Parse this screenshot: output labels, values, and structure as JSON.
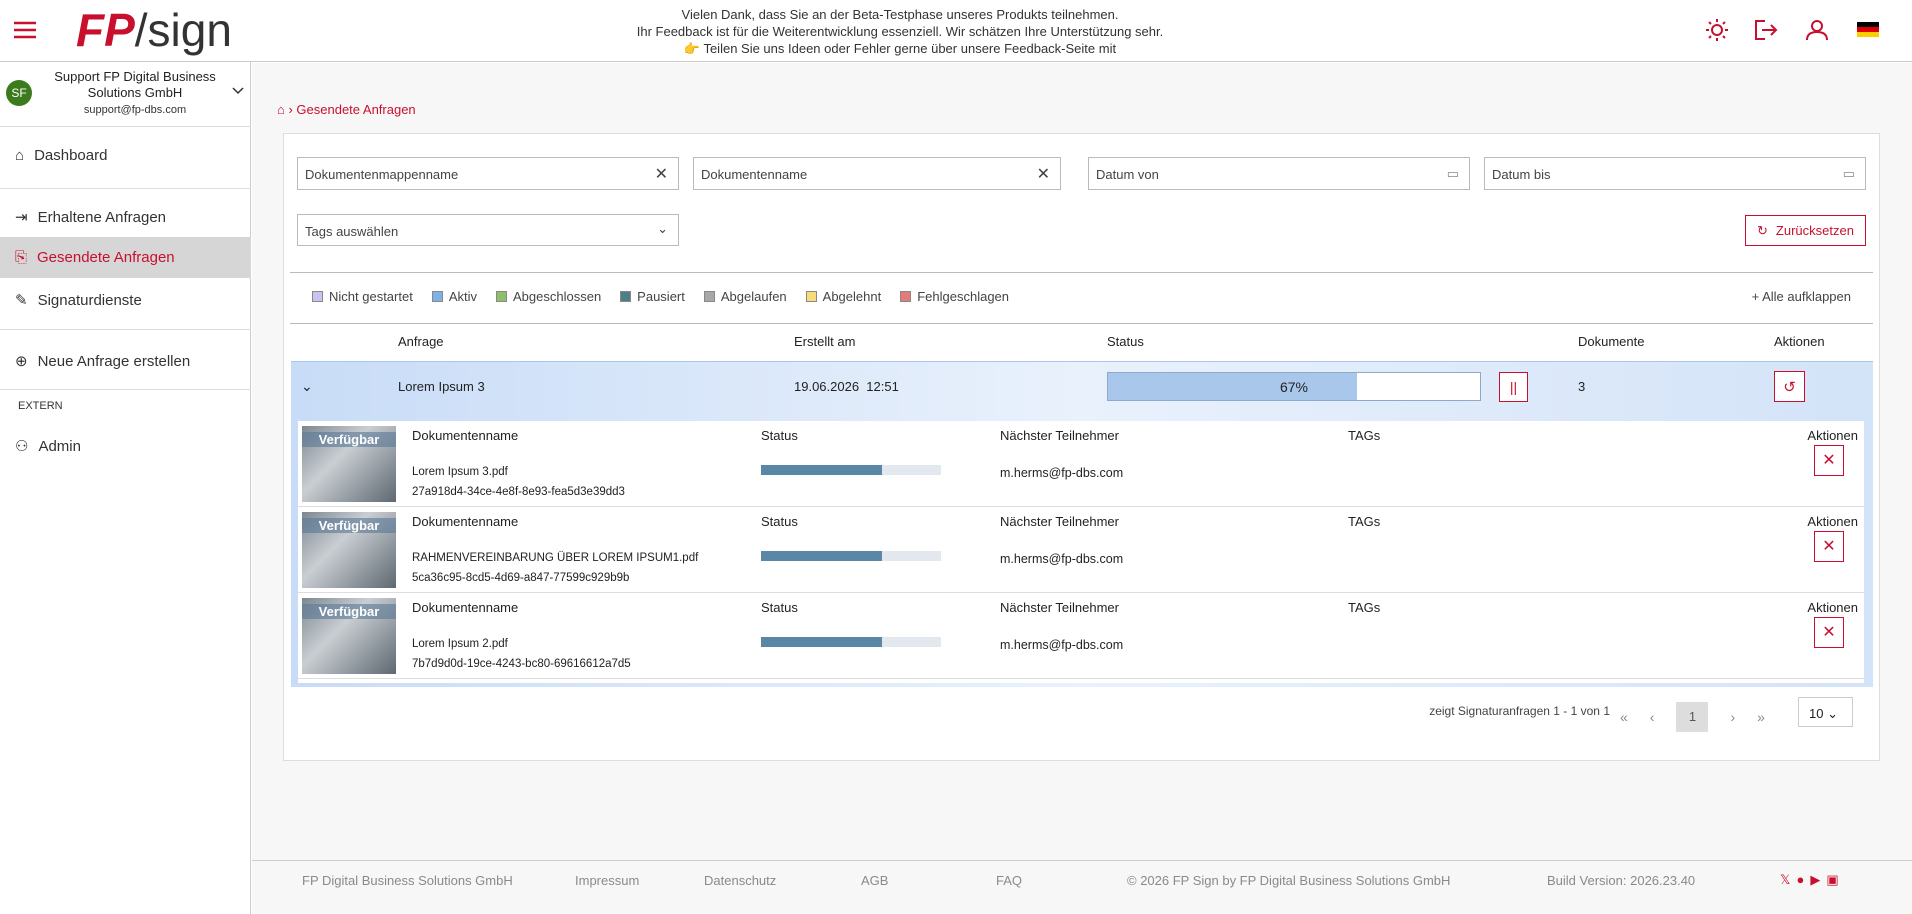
{
  "header": {
    "logo_mark": "FP",
    "logo_text": "/sign",
    "banner": [
      "Vielen Dank, dass Sie an der Beta-Testphase unseres Produkts teilnehmen.",
      "Ihr Feedback ist für die Weiterentwicklung essenziell. Wir schätzen Ihre Unterstützung sehr.",
      "👉 Teilen Sie uns Ideen oder Fehler gerne über unsere Feedback-Seite mit"
    ]
  },
  "sidebar": {
    "initials": "SF",
    "account_name": "Support FP Digital Business Solutions GmbH",
    "email": "support@fp-dbs.com",
    "nav": [
      "Dashboard",
      "Erhaltene Anfragen",
      "Gesendete Anfragen",
      "Signaturdienste",
      "Neue Anfrage erstellen"
    ],
    "section": "EXTERN",
    "admin": "Admin"
  },
  "breadcrumb": "Gesendete Anfragen",
  "filters": {
    "placeholders": [
      "Dokumentenmappenname",
      "Dokumentenname",
      "Datum von",
      "Datum bis"
    ],
    "tags": "Tags auswählen",
    "reset": "Zurücksetzen"
  },
  "legend": {
    "items": [
      {
        "label": "Nicht gestartet",
        "color": "#c9c3ef"
      },
      {
        "label": "Aktiv",
        "color": "#7fb1e6"
      },
      {
        "label": "Abgeschlossen",
        "color": "#8fbf6a"
      },
      {
        "label": "Pausiert",
        "color": "#4f7f86"
      },
      {
        "label": "Abgelaufen",
        "color": "#a8a8a8"
      },
      {
        "label": "Abgelehnt",
        "color": "#f7dc7c"
      },
      {
        "label": "Fehlgeschlagen",
        "color": "#e67a7a"
      }
    ],
    "expand_all": "Alle aufklappen"
  },
  "table": {
    "headers": [
      "Anfrage",
      "Erstellt am",
      "Status",
      "Dokumente",
      "Aktionen"
    ],
    "row": {
      "name": "Lorem Ipsum 3",
      "created": "19.06.2026  12:51",
      "progress": {
        "value": 67,
        "label": "67%"
      },
      "documents": "3"
    }
  },
  "documents": {
    "badge": "Verfügbar",
    "headers": [
      "Dokumentenname",
      "Status",
      "Nächster Teilnehmer",
      "TAGs",
      "Aktionen"
    ],
    "rows": [
      {
        "file": "Lorem Ipsum 3.pdf",
        "id": "27a918d4-34ce-4e8f-8e93-fea5d3e39dd3",
        "participant": "m.herms@fp-dbs.com",
        "progress": 67
      },
      {
        "file": "RAHMENVEREINBARUNG ÜBER LOREM IPSUM1.pdf",
        "id": "5ca36c95-8cd5-4d69-a847-77599c929b9b",
        "participant": "m.herms@fp-dbs.com",
        "progress": 67
      },
      {
        "file": "Lorem Ipsum 2.pdf",
        "id": "7b7d9d0d-19ce-4243-bc80-69616612a7d5",
        "participant": "m.herms@fp-dbs.com",
        "progress": 67
      }
    ]
  },
  "pagination": {
    "summary": "zeigt Signaturanfragen 1 - 1 von 1",
    "page": "1",
    "page_size": "10"
  },
  "footer": {
    "links": [
      "FP Digital Business Solutions GmbH",
      "Impressum",
      "Datenschutz",
      "AGB",
      "FAQ",
      "© 2026 FP Sign by FP Digital Business Solutions GmbH",
      "Build Version: 2026.23.40"
    ]
  }
}
